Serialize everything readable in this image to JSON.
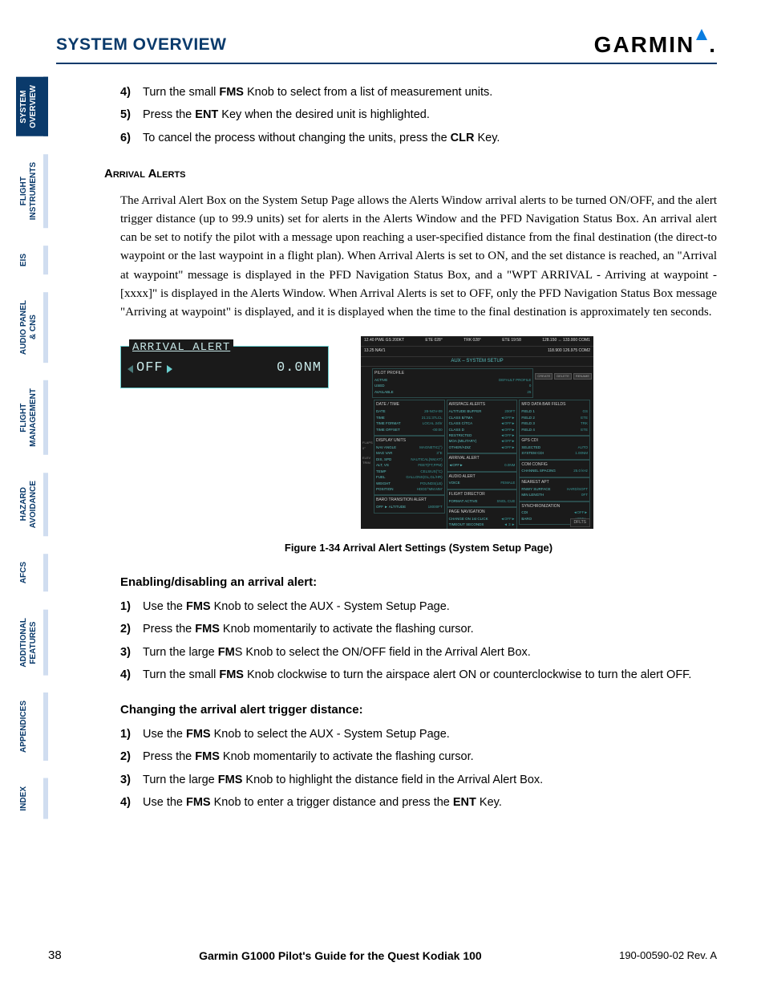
{
  "header": {
    "section_title": "SYSTEM OVERVIEW",
    "logo_text": "GARMIN"
  },
  "tabs": [
    "SYSTEM\nOVERVIEW",
    "FLIGHT\nINSTRUMENTS",
    "EIS",
    "AUDIO PANEL\n& CNS",
    "FLIGHT\nMANAGEMENT",
    "HAZARD\nAVOIDANCE",
    "AFCS",
    "ADDITIONAL\nFEATURES",
    "APPENDICES",
    "INDEX"
  ],
  "active_tab_index": 0,
  "steps_top": [
    {
      "n": "4)",
      "html": "Turn the small <b>FMS</b> Knob to select from a list of measurement units."
    },
    {
      "n": "5)",
      "html": "Press the <b>ENT</b> Key when the desired unit is highlighted."
    },
    {
      "n": "6)",
      "html": "To cancel the process without changing the units, press the <b>CLR</b> Key."
    }
  ],
  "subhead1": "Arrival Alerts",
  "para1": "The Arrival Alert Box on the System Setup Page allows the Alerts Window arrival alerts to be turned ON/OFF, and the alert trigger distance (up to 99.9 units) set for alerts in the Alerts Window and the PFD Navigation Status Box.  An arrival alert can be set to notify the pilot with a message upon reaching a user-specified distance from the final destination (the direct-to waypoint or the last waypoint in a flight plan).  When Arrival Alerts is set to ON, and the set distance is reached, an \"Arrival at waypoint\" message is displayed in the PFD Navigation Status Box, and a \"WPT ARRIVAL - Arriving at waypoint - [xxxx]\" is displayed in the Alerts Window.  When Arrival Alerts is set to OFF, only the PFD Navigation Status Box message \"Arriving at waypoint\" is displayed, and it is displayed when the time to the final destination is approximately ten seconds.",
  "alert_box": {
    "title": "ARRIVAL ALERT",
    "status": "OFF",
    "distance": "0.0NM"
  },
  "setup_screen": {
    "top_left": "12.40  PWE GS 200KT",
    "top_mid1": "ETE 028°",
    "top_mid2": "TRK 028°",
    "top_mid3": "ETE 19:58",
    "top_right": "128.150 ↔ 133.000 COM1",
    "row2_left": "13.25  NAV1",
    "row2_right": "118.900       126.975 COM2",
    "band": "AUX – SYSTEM SETUP",
    "buttons": [
      "CREATE",
      "DELETE",
      "RENAME"
    ],
    "profile": {
      "title": "PILOT PROFILE",
      "rows": [
        [
          "ACTIVE",
          "DEFAULT PROFILE"
        ],
        [
          "USED",
          "0"
        ],
        [
          "AVAILABLE",
          "25"
        ]
      ]
    },
    "date": {
      "title": "DATE / TIME",
      "rows": [
        [
          "DATE",
          "28-NOV-09"
        ],
        [
          "TIME",
          "21:21:37LCL"
        ],
        [
          "TIME FORMAT",
          "LOCAL 24hr"
        ],
        [
          "TIME OFFSET",
          "-00:00"
        ]
      ]
    },
    "display": {
      "title": "DISPLAY UNITS",
      "rows": [
        [
          "NAV ANGLE",
          "MAGNETIC(°)"
        ],
        [
          "MAG VAR",
          "3°E"
        ],
        [
          "DIS, SPD",
          "NAUTICAL(NM,KT)"
        ],
        [
          "ALT, VS",
          "FEET(FT,FPM)"
        ],
        [
          "TEMP",
          "CELSIUS(°C)"
        ],
        [
          "FUEL",
          "GALLONS(GL,GL/HR)"
        ],
        [
          "WEIGHT",
          "POUNDS(LB)"
        ],
        [
          "POSITION",
          "HDDD°MM.MM'"
        ]
      ]
    },
    "baro": {
      "title": "BARO TRANSITION ALERT",
      "rows": [
        [
          "OFF ►  ALTITUDE",
          "18000FT"
        ]
      ]
    },
    "airspace": {
      "title": "AIRSPACE ALERTS",
      "rows": [
        [
          "ALTITUDE BUFFER",
          "200FT"
        ],
        [
          "CLASS B/TMA",
          "◄OFF►"
        ],
        [
          "CLASS C/TCA",
          "◄OFF►"
        ],
        [
          "CLASS D",
          "◄OFF►"
        ],
        [
          "RESTRICTED",
          "◄OFF►"
        ],
        [
          "MOA (MILITARY)",
          "◄OFF►"
        ],
        [
          "OTHER/ADIZ",
          "◄OFF►"
        ]
      ]
    },
    "arrival": {
      "title": "ARRIVAL ALERT",
      "rows": [
        [
          "◄OFF►",
          "0.0NM"
        ]
      ]
    },
    "audio": {
      "title": "AUDIO ALERT",
      "rows": [
        [
          "VOICE",
          "FEMALE"
        ]
      ]
    },
    "fdir": {
      "title": "FLIGHT DIRECTOR",
      "rows": [
        [
          "FORMAT ACTIVE",
          "SNGL CUE"
        ]
      ]
    },
    "pagenav": {
      "title": "PAGE NAVIGATION",
      "rows": [
        [
          "CHANGE ON 1st CLICK",
          "◄OFF►"
        ],
        [
          "TIMEOUT SECONDS",
          "◄ 3 ►"
        ]
      ]
    },
    "mfd": {
      "title": "MFD DATA BAR FIELDS",
      "rows": [
        [
          "FIELD 1",
          "GS"
        ],
        [
          "FIELD 2",
          "ETE"
        ],
        [
          "FIELD 3",
          "TRK"
        ],
        [
          "FIELD 4",
          "ETE"
        ]
      ]
    },
    "gps": {
      "title": "GPS CDI",
      "rows": [
        [
          "SELECTED",
          "AUTO"
        ],
        [
          "SYSTEM CDI",
          "1.00NM"
        ]
      ]
    },
    "com": {
      "title": "COM CONFIG",
      "rows": [
        [
          "CHANNEL SPACING",
          "25.0 kHz"
        ]
      ]
    },
    "apt": {
      "title": "NEAREST APT",
      "rows": [
        [
          "RNWY SURFACE",
          "HARD/SOFT"
        ],
        [
          "MIN LENGTH",
          "0FT"
        ]
      ]
    },
    "sync": {
      "title": "SYNCHRONIZATION",
      "rows": [
        [
          "CDI",
          "◄OFF►"
        ],
        [
          "BARO",
          "◄OFF►"
        ]
      ]
    },
    "bottom_btn": "DFLTS"
  },
  "fig_caption": "Figure 1-34  Arrival Alert Settings (System Setup Page)",
  "proc1_title": "Enabling/disabling an arrival alert:",
  "proc1_steps": [
    {
      "n": "1)",
      "html": "Use the <b>FMS</b> Knob to select the AUX - System Setup Page."
    },
    {
      "n": "2)",
      "html": "Press the <b>FMS</b> Knob momentarily to activate the flashing cursor."
    },
    {
      "n": "3)",
      "html": "Turn the large <b>FM</b>S Knob to select the ON/OFF field in the Arrival Alert Box."
    },
    {
      "n": "4)",
      "html": "Turn the small <b>FMS</b> Knob clockwise to turn the airspace alert ON or counterclockwise to turn the alert OFF."
    }
  ],
  "proc2_title": "Changing the arrival alert trigger distance:",
  "proc2_steps": [
    {
      "n": "1)",
      "html": "Use the <b>FMS</b> Knob to select the AUX - System Setup Page."
    },
    {
      "n": "2)",
      "html": "Press the <b>FMS</b> Knob momentarily to activate the flashing cursor."
    },
    {
      "n": "3)",
      "html": "Turn the large <b>FMS</b> Knob to highlight the distance field in the Arrival Alert Box."
    },
    {
      "n": "4)",
      "html": "Use the <b>FMS</b> Knob to enter a trigger distance and press the <b>ENT</b> Key."
    }
  ],
  "footer": {
    "page": "38",
    "mid": "Garmin G1000 Pilot's Guide for the Quest Kodiak 100",
    "rev": "190-00590-02   Rev. A"
  },
  "colors": {
    "brand_blue": "#0a3a6b",
    "tab_bg": "#d0ddf0",
    "screen_bg": "#1a1a1a",
    "screen_cyan": "#5ac0c0"
  }
}
